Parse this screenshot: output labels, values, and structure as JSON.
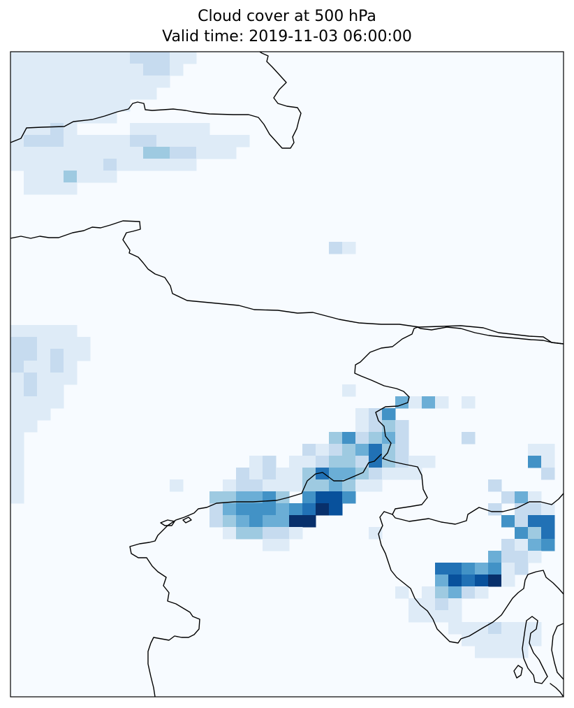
{
  "title": {
    "line1": "Cloud cover at 500 hPa",
    "line2": "Valid time: 2019-11-03 06:00:00"
  },
  "map": {
    "background_color": "#f7fbff",
    "frame_color": "#000000",
    "coastline_color": "#000000",
    "colormap": "Blues",
    "shading_levels_hex": [
      "#f7fbff",
      "#deebf7",
      "#c6dbef",
      "#9ecae1",
      "#6baed6",
      "#4292c6",
      "#2171b5",
      "#08519c",
      "#08306b"
    ]
  }
}
